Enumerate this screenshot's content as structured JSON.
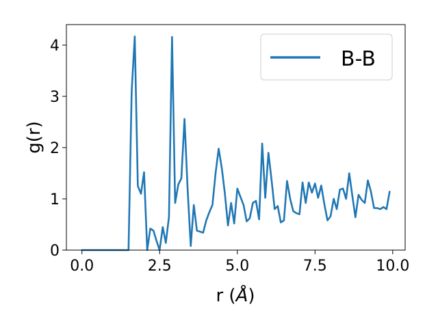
{
  "chart_data": {
    "type": "line",
    "title": "",
    "xlabel": "r (",
    "xlabel_unit": "Å",
    "xlabel_close": ")",
    "ylabel": "g(r)",
    "xlim": [
      -0.5,
      10.4
    ],
    "ylim": [
      0,
      4.4
    ],
    "xticks": [
      "0.0",
      "2.5",
      "5.0",
      "7.5",
      "10.0"
    ],
    "xtick_values": [
      0,
      2.5,
      5.0,
      7.5,
      10.0
    ],
    "yticks": [
      "0",
      "1",
      "2",
      "3",
      "4"
    ],
    "ytick_values": [
      0,
      1,
      2,
      3,
      4
    ],
    "grid": false,
    "legend_position": "top-right",
    "colors": {
      "series": "#1f77b4",
      "axes": "#000000",
      "background": "#ffffff"
    },
    "series": [
      {
        "name": "B-B",
        "x": [
          0.0,
          0.1,
          0.2,
          0.3,
          0.4,
          0.5,
          0.6,
          0.7,
          0.8,
          0.9,
          1.0,
          1.1,
          1.2,
          1.3,
          1.4,
          1.5,
          1.6,
          1.7,
          1.8,
          1.9,
          2.0,
          2.1,
          2.2,
          2.3,
          2.4,
          2.5,
          2.6,
          2.7,
          2.8,
          2.9,
          3.0,
          3.1,
          3.2,
          3.3,
          3.4,
          3.5,
          3.6,
          3.7,
          3.8,
          3.9,
          4.0,
          4.1,
          4.2,
          4.3,
          4.4,
          4.5,
          4.6,
          4.7,
          4.8,
          4.9,
          5.0,
          5.1,
          5.2,
          5.3,
          5.4,
          5.5,
          5.6,
          5.7,
          5.8,
          5.9,
          6.0,
          6.1,
          6.2,
          6.3,
          6.4,
          6.5,
          6.6,
          6.7,
          6.8,
          6.9,
          7.0,
          7.1,
          7.2,
          7.3,
          7.4,
          7.5,
          7.6,
          7.7,
          7.8,
          7.9,
          8.0,
          8.1,
          8.2,
          8.3,
          8.4,
          8.5,
          8.6,
          8.7,
          8.8,
          8.9,
          9.0,
          9.1,
          9.2,
          9.3,
          9.4,
          9.5,
          9.6,
          9.7,
          9.8,
          9.9
        ],
        "y": [
          0.0,
          0.0,
          0.0,
          0.0,
          0.0,
          0.0,
          0.0,
          0.0,
          0.0,
          0.0,
          0.0,
          0.0,
          0.0,
          0.0,
          0.0,
          0.0,
          3.1,
          4.17,
          1.25,
          1.1,
          1.52,
          0.0,
          0.42,
          0.38,
          0.18,
          0.0,
          0.45,
          0.14,
          0.65,
          4.16,
          0.92,
          1.28,
          1.4,
          2.56,
          1.2,
          0.08,
          0.88,
          0.38,
          0.36,
          0.34,
          0.58,
          0.74,
          0.88,
          1.5,
          1.98,
          1.6,
          1.1,
          0.48,
          0.92,
          0.52,
          1.2,
          1.04,
          0.88,
          0.56,
          0.62,
          0.92,
          0.96,
          0.6,
          2.08,
          1.02,
          1.9,
          1.38,
          0.8,
          0.86,
          0.54,
          0.58,
          1.35,
          1.0,
          0.76,
          0.72,
          0.7,
          1.32,
          0.92,
          1.32,
          1.12,
          1.3,
          1.02,
          1.26,
          0.9,
          0.58,
          0.66,
          1.0,
          0.8,
          1.18,
          1.2,
          1.0,
          1.5,
          1.06,
          0.64,
          1.08,
          0.98,
          0.92,
          1.36,
          1.14,
          0.82,
          0.82,
          0.8,
          0.84,
          0.8,
          1.14
        ]
      }
    ]
  }
}
